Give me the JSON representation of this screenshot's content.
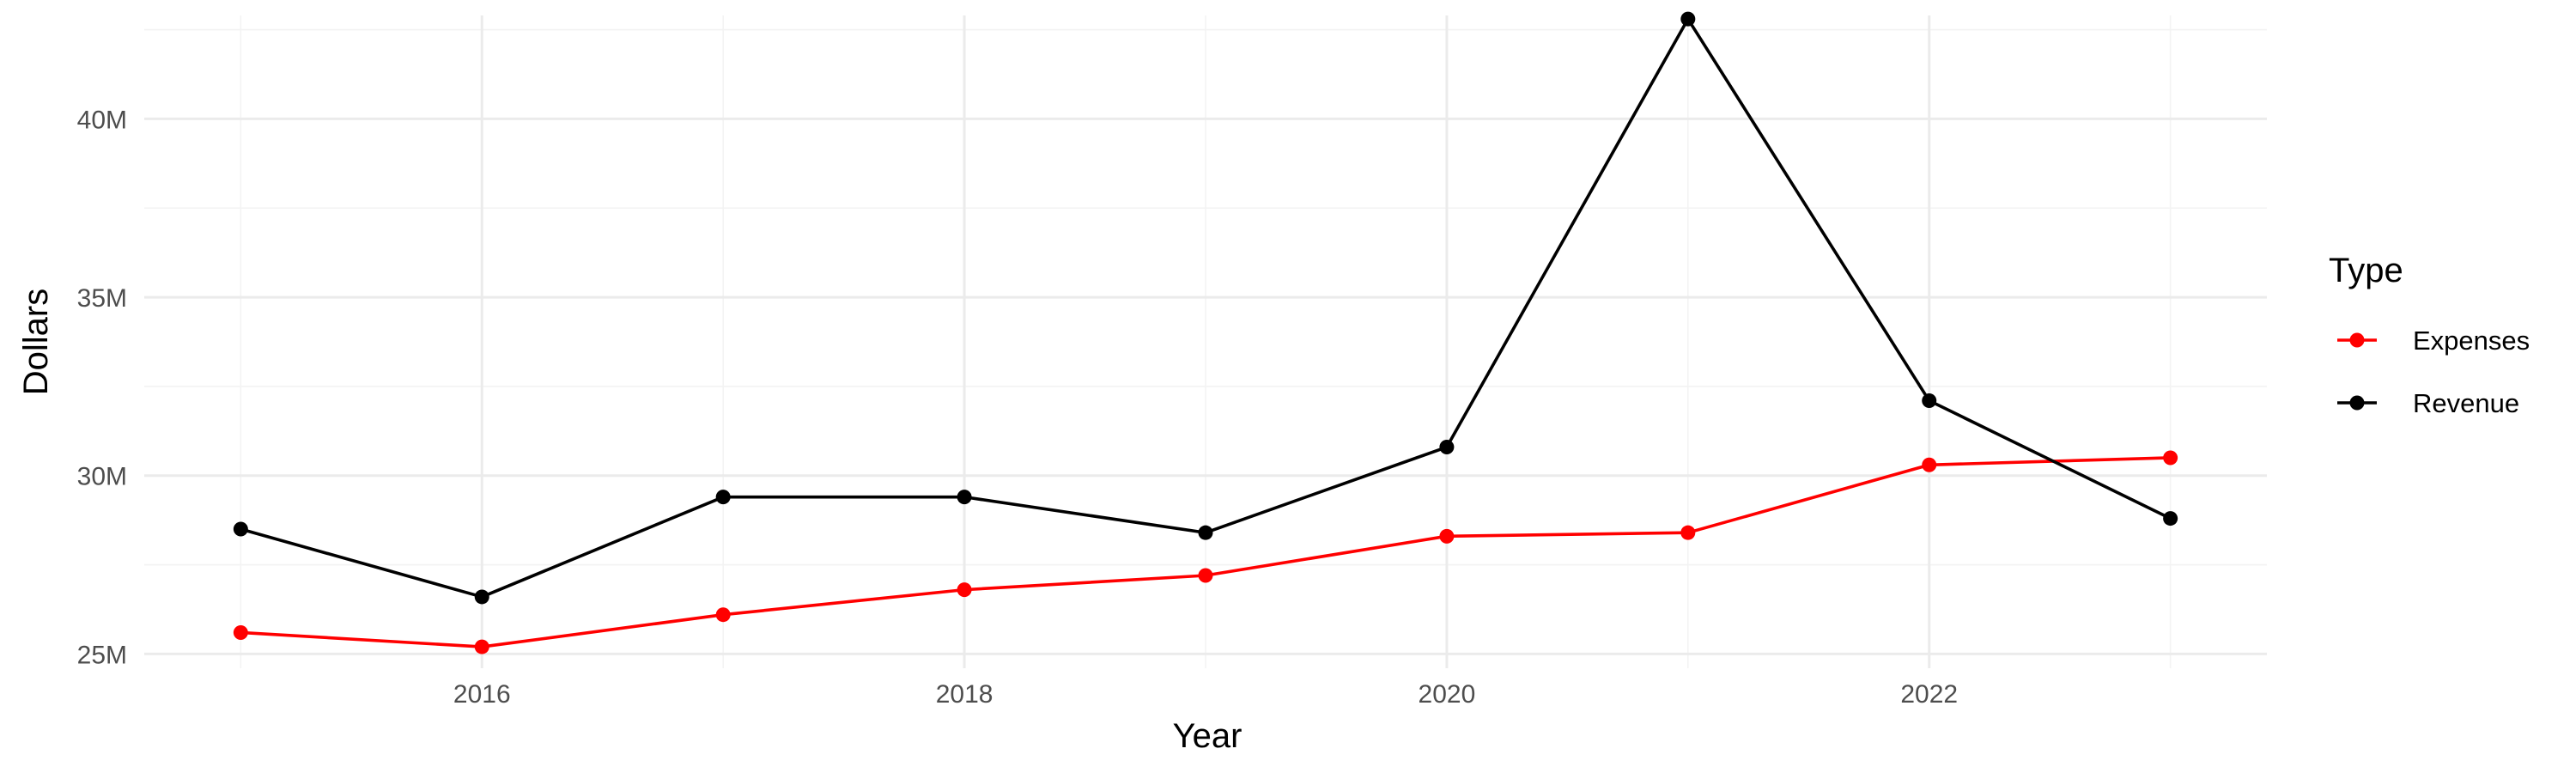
{
  "chart_data": {
    "type": "line",
    "x": [
      2015,
      2016,
      2017,
      2018,
      2019,
      2020,
      2021,
      2022,
      2023
    ],
    "x_ticks": [
      "2016",
      "2018",
      "2020",
      "2022"
    ],
    "y_ticks": [
      "25M",
      "30M",
      "35M",
      "40M"
    ],
    "xlim": [
      2014.6,
      2023.4
    ],
    "ylim": [
      24.6,
      42.9
    ],
    "xlabel": "Year",
    "ylabel": "Dollars",
    "grid": true,
    "legend": {
      "title": "Type",
      "position": "right"
    },
    "series": [
      {
        "name": "Expenses",
        "color": "#ff0000",
        "values": [
          25.6,
          25.2,
          26.1,
          26.8,
          27.2,
          28.3,
          28.4,
          30.3,
          30.5
        ]
      },
      {
        "name": "Revenue",
        "color": "#000000",
        "values": [
          28.5,
          26.6,
          29.4,
          29.4,
          28.4,
          30.8,
          42.8,
          32.1,
          28.8
        ]
      }
    ]
  }
}
